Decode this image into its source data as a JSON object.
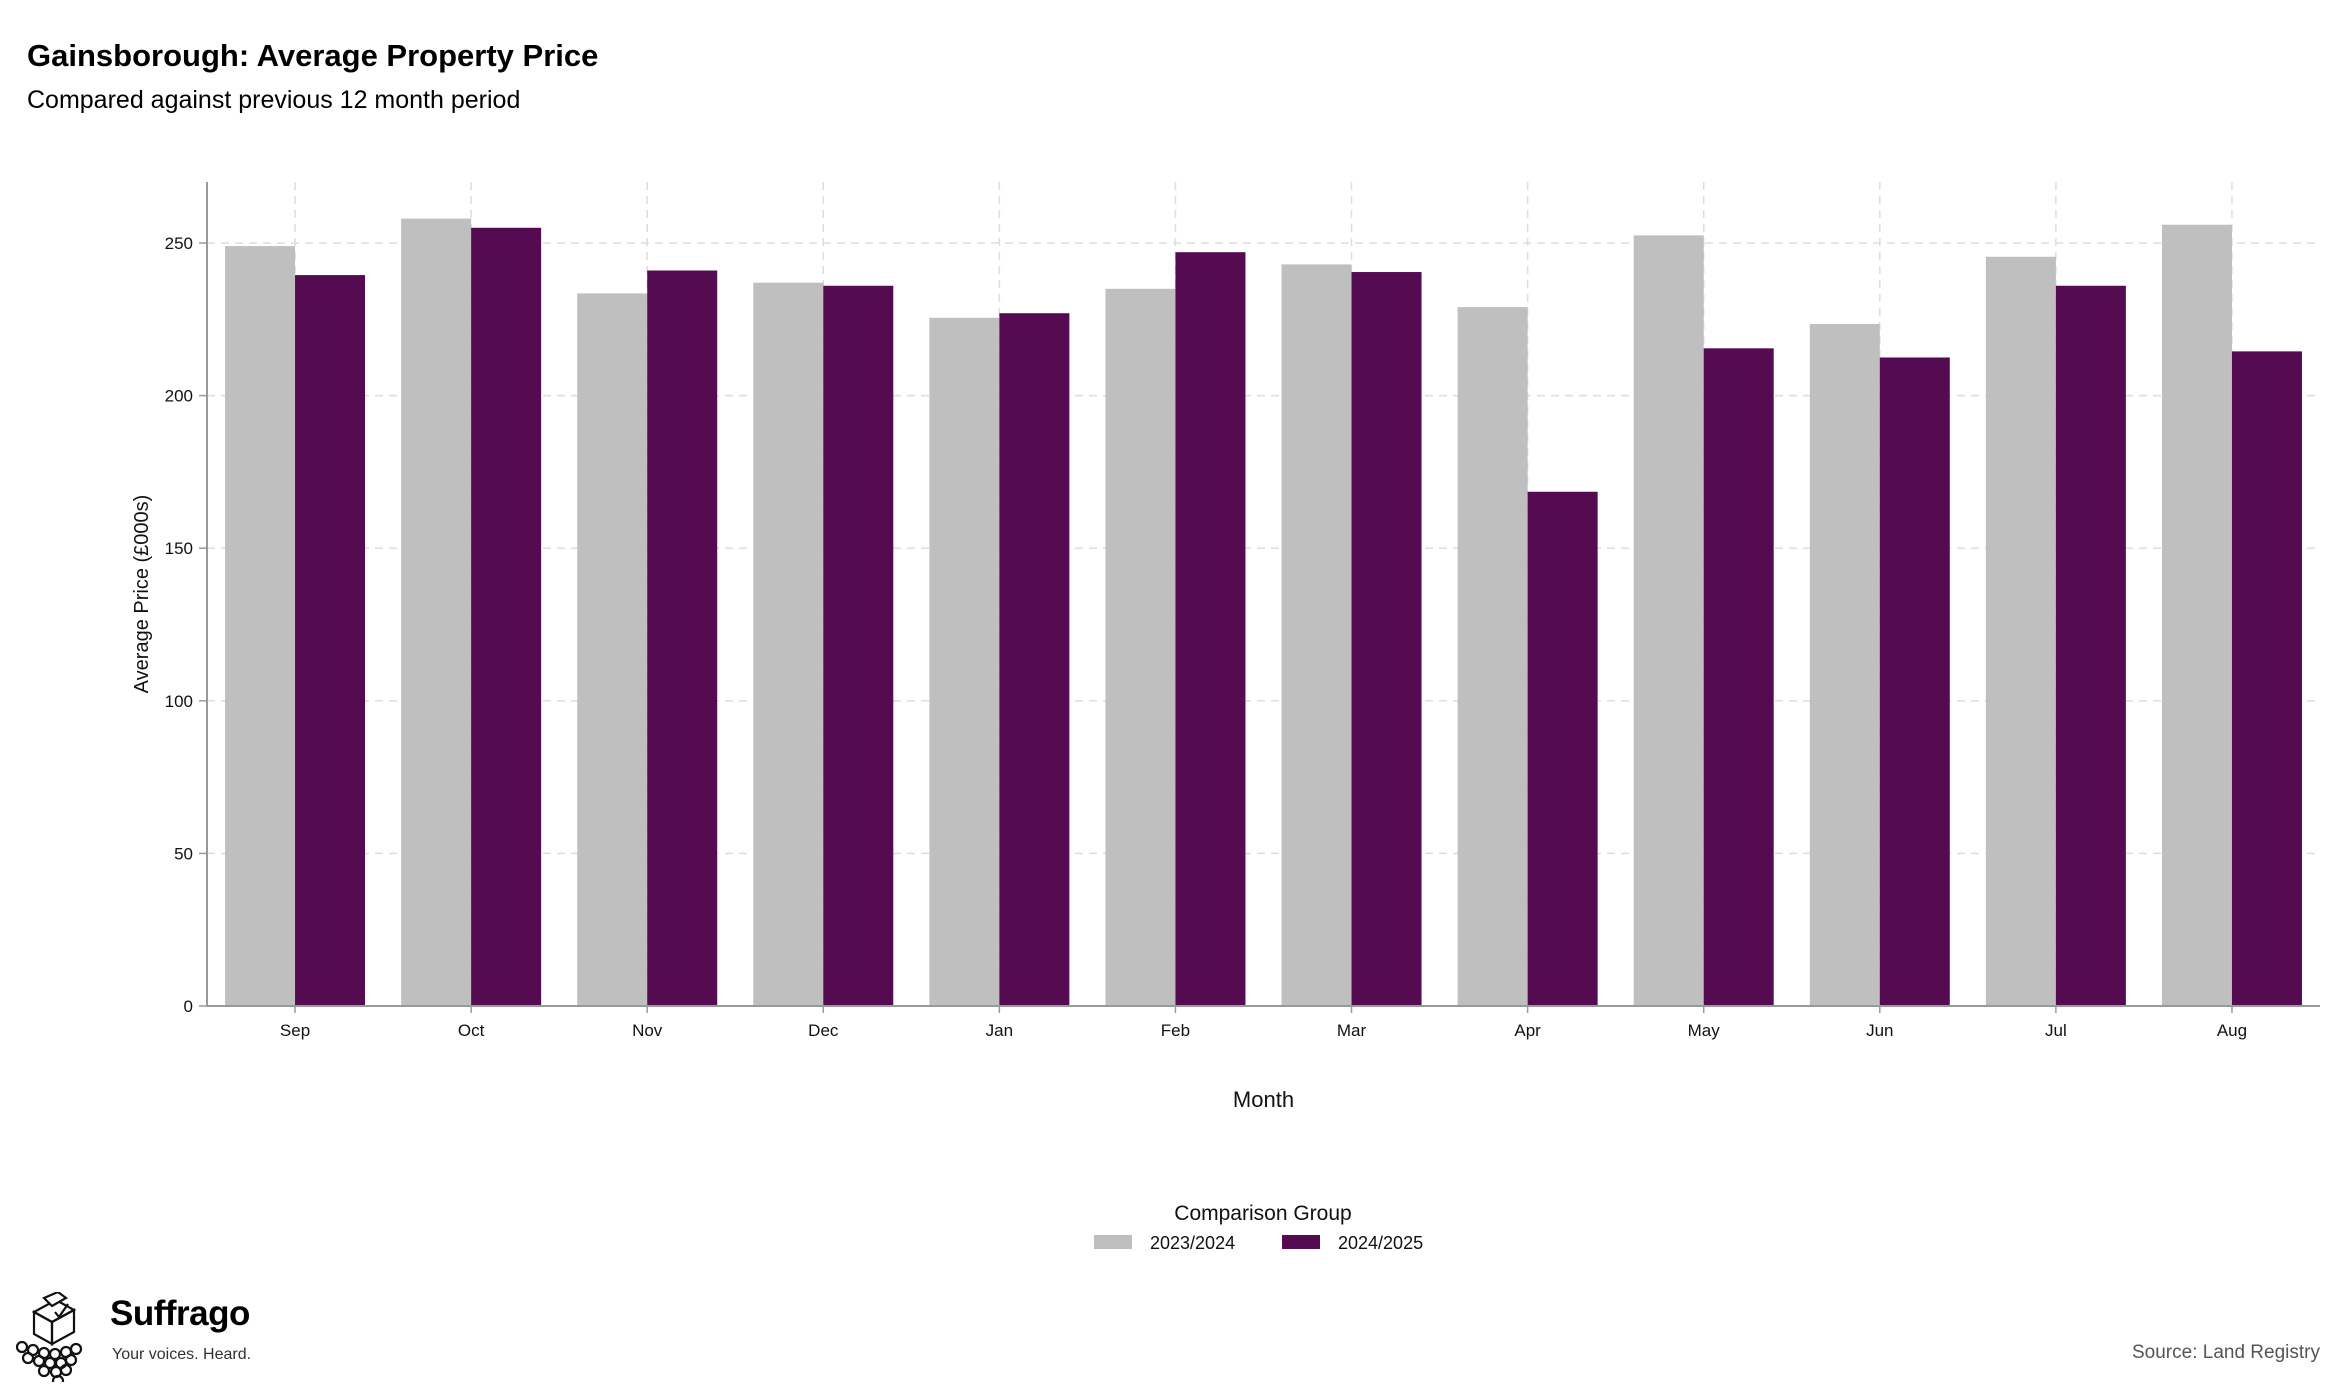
{
  "header": {
    "title": "Gainsborough: Average Property Price",
    "subtitle": "Compared against previous 12 month period"
  },
  "footer": {
    "brand": "Suffrago",
    "tagline": "Your voices. Heard.",
    "source": "Source: Land Registry",
    "logo_icon": "ballot-box-icon"
  },
  "chart_data": {
    "type": "bar",
    "xlabel": "Month",
    "ylabel": "Average Price (£000s)",
    "ylim": [
      0,
      270
    ],
    "yticks": [
      0,
      50,
      100,
      150,
      200,
      250
    ],
    "grid": true,
    "legend_title": "Comparison Group",
    "legend_position": "bottom",
    "categories": [
      "Sep",
      "Oct",
      "Nov",
      "Dec",
      "Jan",
      "Feb",
      "Mar",
      "Apr",
      "May",
      "Jun",
      "Jul",
      "Aug"
    ],
    "series": [
      {
        "name": "2023/2024",
        "color": "#bfbfbf",
        "values": [
          249,
          258,
          233.5,
          237,
          225.5,
          235,
          243,
          229,
          252.5,
          223.5,
          245.5,
          256
        ]
      },
      {
        "name": "2024/2025",
        "color": "#540b51",
        "values": [
          239.5,
          255,
          241,
          236,
          227,
          247,
          240.5,
          168.5,
          215.5,
          212.5,
          236,
          214.5
        ]
      }
    ]
  }
}
